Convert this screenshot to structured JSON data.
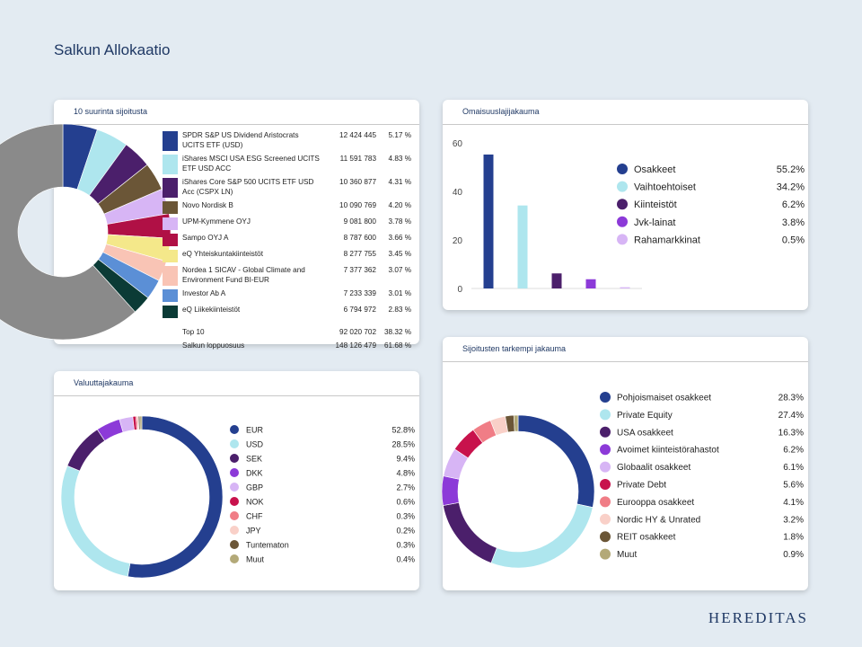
{
  "page_title": "Salkun Allokaatio",
  "brand": "HEREDITAS",
  "colors": {
    "navy": "#243f8f",
    "lightblue": "#aee6ee",
    "purple_dark": "#4b1f6b",
    "violet": "#8c3ad8",
    "lavender": "#d7b5f5",
    "crimson": "#c8124c",
    "salmon": "#f07d86",
    "peach": "#f9d0c8",
    "brown": "#6b5637",
    "olive": "#b3a978",
    "gray": "#8a8a8a"
  },
  "chart_data": [
    {
      "id": "top10",
      "type": "table",
      "title": "10 suurinta sijoitusta",
      "rows": [
        {
          "name_lines": [
            "SPDR S&P US Dividend Aristocrats",
            "UCITS ETF (USD)"
          ],
          "value": "12 424 445",
          "pct": "5.17 %",
          "share": 5.17,
          "color": "#243f8f"
        },
        {
          "name_lines": [
            "iShares MSCI USA ESG Screened UCITS",
            "ETF USD ACC"
          ],
          "value": "11 591 783",
          "pct": "4.83 %",
          "share": 4.83,
          "color": "#aee6ee"
        },
        {
          "name_lines": [
            "iShares Core S&P 500 UCITS ETF USD",
            "Acc (CSPX LN)"
          ],
          "value": "10 360 877",
          "pct": "4.31 %",
          "share": 4.31,
          "color": "#4b1f6b"
        },
        {
          "name_lines": [
            "Novo Nordisk B"
          ],
          "value": "10 090 769",
          "pct": "4.20 %",
          "share": 4.2,
          "color": "#6b5637"
        },
        {
          "name_lines": [
            "UPM-Kymmene OYJ"
          ],
          "value": "9 081 800",
          "pct": "3.78 %",
          "share": 3.78,
          "color": "#d7b5f5"
        },
        {
          "name_lines": [
            "Sampo OYJ A"
          ],
          "value": "8 787 600",
          "pct": "3.66 %",
          "share": 3.66,
          "color": "#b01045"
        },
        {
          "name_lines": [
            "eQ Yhteiskuntakiinteistöt"
          ],
          "value": "8 277 755",
          "pct": "3.45 %",
          "share": 3.45,
          "color": "#f4e88a"
        },
        {
          "name_lines": [
            "Nordea 1 SICAV - Global Climate and",
            "Environment Fund BI-EUR"
          ],
          "value": "7 377 362",
          "pct": "3.07 %",
          "share": 3.07,
          "color": "#f9c4b5"
        },
        {
          "name_lines": [
            "Investor Ab A"
          ],
          "value": "7 233 339",
          "pct": "3.01 %",
          "share": 3.01,
          "color": "#5b8fd6"
        },
        {
          "name_lines": [
            "eQ Liikekiinteistöt"
          ],
          "value": "6 794 972",
          "pct": "2.83 %",
          "share": 2.83,
          "color": "#0b3b36"
        }
      ],
      "totals": [
        {
          "label": "Top 10",
          "value": "92 020 702",
          "pct": "38.32 %"
        },
        {
          "label": "Salkun loppuosuus",
          "value": "148 126 479",
          "pct": "61.68 %"
        }
      ],
      "remainder_share": 61.68,
      "remainder_color": "#8a8a8a"
    },
    {
      "id": "asset",
      "type": "bar",
      "title": "Omaisuuslajijakauma",
      "categories": [
        "Osakkeet",
        "Vaihtoehtoiset",
        "Kiinteistöt",
        "Jvk-lainat",
        "Rahamarkkinat"
      ],
      "values": [
        55.2,
        34.2,
        6.2,
        3.8,
        0.5
      ],
      "labels": [
        "55.2%",
        "34.2%",
        "6.2%",
        "3.8%",
        "0.5%"
      ],
      "colors": [
        "#243f8f",
        "#aee6ee",
        "#4b1f6b",
        "#8c3ad8",
        "#d7b5f5"
      ],
      "yticks": [
        "0",
        "20",
        "40",
        "60"
      ],
      "ylim": [
        0,
        60
      ],
      "grid": false,
      "legend": "right"
    },
    {
      "id": "currency",
      "type": "pie",
      "title": "Valuuttajakauma",
      "categories": [
        "EUR",
        "USD",
        "SEK",
        "DKK",
        "GBP",
        "NOK",
        "CHF",
        "JPY",
        "Tuntematon",
        "Muut"
      ],
      "values": [
        52.8,
        28.5,
        9.4,
        4.8,
        2.7,
        0.6,
        0.3,
        0.2,
        0.3,
        0.4
      ],
      "labels": [
        "52.8%",
        "28.5%",
        "9.4%",
        "4.8%",
        "2.7%",
        "0.6%",
        "0.3%",
        "0.2%",
        "0.3%",
        "0.4%"
      ],
      "colors": [
        "#243f8f",
        "#aee6ee",
        "#4b1f6b",
        "#8c3ad8",
        "#d7b5f5",
        "#c8124c",
        "#f07d86",
        "#f9d0c8",
        "#6b5637",
        "#b3a978"
      ],
      "legend": "right"
    },
    {
      "id": "detail",
      "type": "pie",
      "title": "Sijoitusten tarkempi jakauma",
      "categories": [
        "Pohjoismaiset osakkeet",
        "Private Equity",
        "USA osakkeet",
        "Avoimet kiinteistörahastot",
        "Globaalit osakkeet",
        "Private Debt",
        "Eurooppa osakkeet",
        "Nordic HY & Unrated",
        "REIT osakkeet",
        "Muut"
      ],
      "values": [
        28.3,
        27.4,
        16.3,
        6.2,
        6.1,
        5.6,
        4.1,
        3.2,
        1.8,
        0.9
      ],
      "labels": [
        "28.3%",
        "27.4%",
        "16.3%",
        "6.2%",
        "6.1%",
        "5.6%",
        "4.1%",
        "3.2%",
        "1.8%",
        "0.9%"
      ],
      "colors": [
        "#243f8f",
        "#aee6ee",
        "#4b1f6b",
        "#8c3ad8",
        "#d7b5f5",
        "#c8124c",
        "#f07d86",
        "#f9d0c8",
        "#6b5637",
        "#b3a978"
      ],
      "legend": "right"
    }
  ]
}
